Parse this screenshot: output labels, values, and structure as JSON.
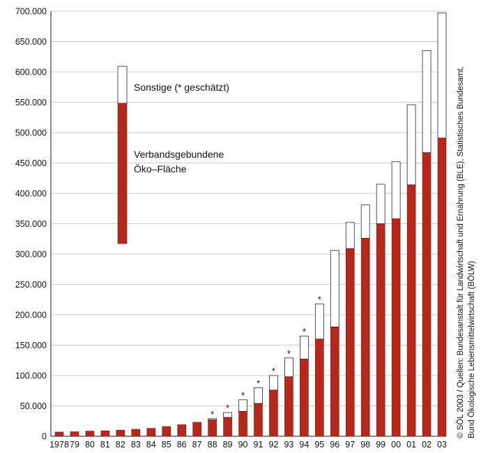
{
  "chart_data": {
    "type": "bar",
    "stacked": true,
    "categories": [
      "1978",
      "79",
      "80",
      "81",
      "82",
      "83",
      "84",
      "85",
      "86",
      "87",
      "88",
      "89",
      "90",
      "91",
      "92",
      "93",
      "94",
      "95",
      "96",
      "97",
      "98",
      "99",
      "00",
      "01",
      "02",
      "03"
    ],
    "series": [
      {
        "name": "Verbandsgebundene Öko–Fläche",
        "color": "#b5281c",
        "values": [
          7000,
          7500,
          8500,
          9000,
          10000,
          11500,
          13000,
          16000,
          19000,
          23000,
          27000,
          31000,
          41000,
          54000,
          76000,
          98000,
          127000,
          160000,
          180000,
          309000,
          326000,
          350000,
          358000,
          414000,
          467000,
          491000
        ]
      },
      {
        "name": "Sonstige (* geschätzt)",
        "color": "#ffffff",
        "values": [
          0,
          0,
          0,
          0,
          0,
          0,
          0,
          0,
          0,
          0,
          2000,
          8000,
          19000,
          26000,
          24000,
          31000,
          38000,
          58000,
          126000,
          43000,
          55000,
          65000,
          94000,
          132000,
          168000,
          206000
        ]
      }
    ],
    "estimated_marker": "*",
    "estimated_categories": [
      "88",
      "89",
      "90",
      "91",
      "92",
      "93",
      "94",
      "95"
    ],
    "y_ticks": [
      "0",
      "50.000",
      "100.000",
      "150.000",
      "200.000",
      "250.000",
      "300.000",
      "350.000",
      "400.000",
      "450.000",
      "500.000",
      "550.000",
      "600.000",
      "650.000",
      "700.000"
    ],
    "ylim": [
      0,
      700000
    ],
    "grid": true,
    "legend": {
      "placement": "top-left",
      "items": [
        {
          "label": "Sonstige (* geschätzt)"
        },
        {
          "label_lines": [
            "Verbandsgebundene",
            "Öko–Fläche"
          ]
        }
      ]
    }
  },
  "source_note": {
    "lines": [
      "© SÖL 2003 / Quellen: Bundesanstalt für Landwirtschaft und Ernährung (BLE), Statistisches Bundesamt,",
      "Bund Ökologische Lebensmittelwirtschaft (BÖLW)"
    ]
  }
}
